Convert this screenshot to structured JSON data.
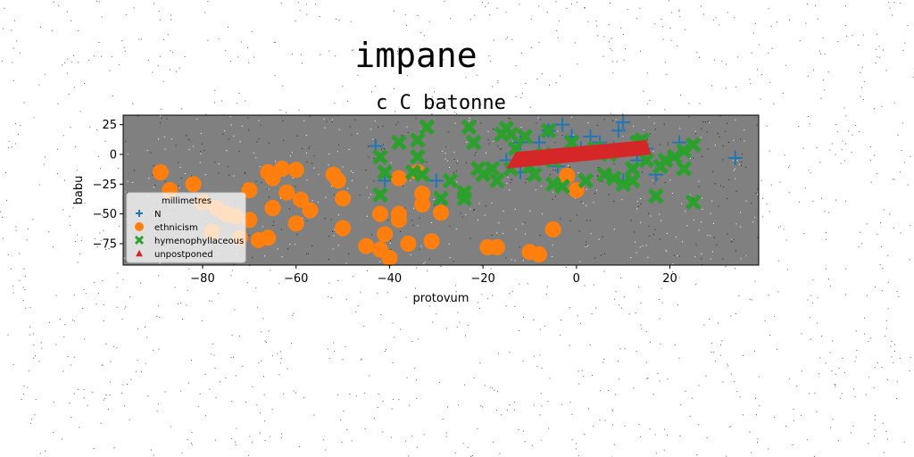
{
  "chart_data": {
    "type": "scatter",
    "suptitle": "impane",
    "title": "c C batonne",
    "xlabel": "protovum",
    "ylabel": "babu",
    "xlim": [
      -97,
      39
    ],
    "ylim": [
      -93,
      33
    ],
    "xticks": [
      -80,
      -60,
      -40,
      -20,
      0,
      20
    ],
    "yticks": [
      25,
      0,
      -25,
      -50,
      -75
    ],
    "background": "#808080",
    "grid": false,
    "legend": {
      "title": "millimetres",
      "placement": "lower-left"
    },
    "series": [
      {
        "name": "N",
        "marker": "plus",
        "color": "#1f77b4",
        "points": [
          [
            -43,
            7
          ],
          [
            -41,
            -22
          ],
          [
            -30,
            -22
          ],
          [
            -15,
            -5
          ],
          [
            -12,
            10
          ],
          [
            -8,
            10
          ],
          [
            -6,
            20
          ],
          [
            -3,
            25
          ],
          [
            -1,
            15
          ],
          [
            1,
            5
          ],
          [
            3,
            15
          ],
          [
            5,
            10
          ],
          [
            8,
            5
          ],
          [
            9,
            20
          ],
          [
            10,
            27
          ],
          [
            10,
            -22
          ],
          [
            13,
            -5
          ],
          [
            15,
            5
          ],
          [
            17,
            -17
          ],
          [
            22,
            10
          ],
          [
            34,
            -3
          ],
          [
            -4,
            -10
          ],
          [
            -12,
            -15
          ]
        ]
      },
      {
        "name": "ethnicism",
        "marker": "circle",
        "color": "#ff7f0e",
        "points": [
          [
            -89,
            -15
          ],
          [
            -87,
            -30
          ],
          [
            -82,
            -25
          ],
          [
            -80,
            -40
          ],
          [
            -78,
            -65
          ],
          [
            -77,
            -45
          ],
          [
            -75,
            -50
          ],
          [
            -73,
            -52
          ],
          [
            -72,
            -70
          ],
          [
            -70,
            -55
          ],
          [
            -70,
            -30
          ],
          [
            -68,
            -72
          ],
          [
            -66,
            -70
          ],
          [
            -66,
            -15
          ],
          [
            -65,
            -20
          ],
          [
            -65,
            -45
          ],
          [
            -63,
            -12
          ],
          [
            -62,
            -32
          ],
          [
            -60,
            -13
          ],
          [
            -60,
            -58
          ],
          [
            -59,
            -38
          ],
          [
            -57,
            -47
          ],
          [
            -52,
            -17
          ],
          [
            -51,
            -22
          ],
          [
            -50,
            -37
          ],
          [
            -50,
            -62
          ],
          [
            -45,
            -77
          ],
          [
            -42,
            -50
          ],
          [
            -42,
            -80
          ],
          [
            -41,
            -67
          ],
          [
            -40,
            -87
          ],
          [
            -38,
            -20
          ],
          [
            -38,
            -55
          ],
          [
            -38,
            -50
          ],
          [
            -36,
            -75
          ],
          [
            -34,
            -15
          ],
          [
            -33,
            -33
          ],
          [
            -33,
            -42
          ],
          [
            -31,
            -73
          ],
          [
            -29,
            -49
          ],
          [
            -19,
            -78
          ],
          [
            -17,
            -78
          ],
          [
            -10,
            -82
          ],
          [
            -8,
            -84
          ],
          [
            -5,
            -63
          ],
          [
            -2,
            -18
          ],
          [
            0,
            -30
          ]
        ]
      },
      {
        "name": "hymenophyllaceous",
        "marker": "x",
        "color": "#2ca02c",
        "points": [
          [
            -42,
            -2
          ],
          [
            -42,
            -34
          ],
          [
            -41,
            -15
          ],
          [
            -38,
            10
          ],
          [
            -35,
            -15
          ],
          [
            -34,
            12
          ],
          [
            -34,
            -2
          ],
          [
            -33,
            -17
          ],
          [
            -32,
            23
          ],
          [
            -29,
            -37
          ],
          [
            -27,
            -22
          ],
          [
            -24,
            -37
          ],
          [
            -24,
            -32
          ],
          [
            -23,
            23
          ],
          [
            -22,
            10
          ],
          [
            -21,
            -12
          ],
          [
            -20,
            -17
          ],
          [
            -18,
            -12
          ],
          [
            -17,
            -22
          ],
          [
            -16,
            17
          ],
          [
            -15,
            22
          ],
          [
            -14,
            17
          ],
          [
            -14,
            -12
          ],
          [
            -13,
            5
          ],
          [
            -11,
            15
          ],
          [
            -10,
            -10
          ],
          [
            -9,
            -17
          ],
          [
            -6,
            20
          ],
          [
            -5,
            -5
          ],
          [
            -5,
            -25
          ],
          [
            -3,
            -27
          ],
          [
            -1,
            10
          ],
          [
            2,
            -22
          ],
          [
            4,
            5
          ],
          [
            6,
            -17
          ],
          [
            7,
            0
          ],
          [
            8,
            -20
          ],
          [
            10,
            -25
          ],
          [
            12,
            -22
          ],
          [
            12,
            -12
          ],
          [
            13,
            10
          ],
          [
            14,
            12
          ],
          [
            15,
            -5
          ],
          [
            17,
            -35
          ],
          [
            18,
            -10
          ],
          [
            19,
            -5
          ],
          [
            21,
            -2
          ],
          [
            23,
            -12
          ],
          [
            23,
            3
          ],
          [
            25,
            -40
          ],
          [
            25,
            8
          ],
          [
            -7,
            0
          ]
        ]
      },
      {
        "name": "unpostponed",
        "marker": "polygon",
        "color": "#d62728",
        "points": [
          [
            -15,
            -12
          ],
          [
            -13,
            2
          ],
          [
            15,
            12
          ],
          [
            16,
            0
          ]
        ]
      }
    ]
  }
}
